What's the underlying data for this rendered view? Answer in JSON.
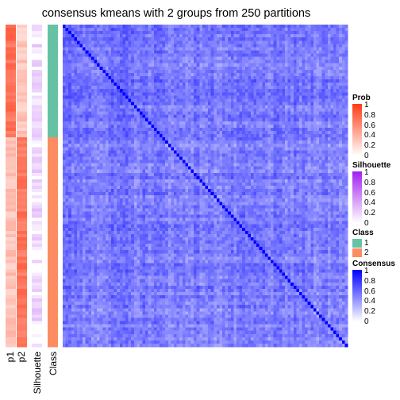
{
  "chart_data": {
    "type": "heatmap",
    "title": "consensus kmeans with 2 groups from 250 partitions",
    "n_samples": 100,
    "class_sizes": [
      35,
      65
    ],
    "annotation_labels": [
      "p1",
      "p2",
      "Silhouette",
      "Class"
    ],
    "legends": {
      "prob": {
        "title": "Prob",
        "ticks": [
          "1",
          "0.8",
          "0.6",
          "0.4",
          "0.2",
          "0"
        ]
      },
      "silhouette": {
        "title": "Silhouette",
        "ticks": [
          "1",
          "0.8",
          "0.6",
          "0.4",
          "0.2",
          "0"
        ]
      },
      "class": {
        "title": "Class",
        "levels": [
          "1",
          "2"
        ]
      },
      "consensus": {
        "title": "Consensus",
        "ticks": [
          "1",
          "0.8",
          "0.6",
          "0.4",
          "0.2",
          "0"
        ]
      }
    },
    "consensus_value_range": [
      0.3,
      0.75
    ],
    "diagonal_value": 1,
    "colors": {
      "prob_low": "#ffffff",
      "prob_high": "#ff3a15",
      "silhouette_low": "#ffffff",
      "silhouette_high": "#a020f0",
      "class_1": "#66c2a5",
      "class_2": "#fc8d62",
      "consensus_low": "#ffffff",
      "consensus_high": "#0000ff"
    }
  }
}
